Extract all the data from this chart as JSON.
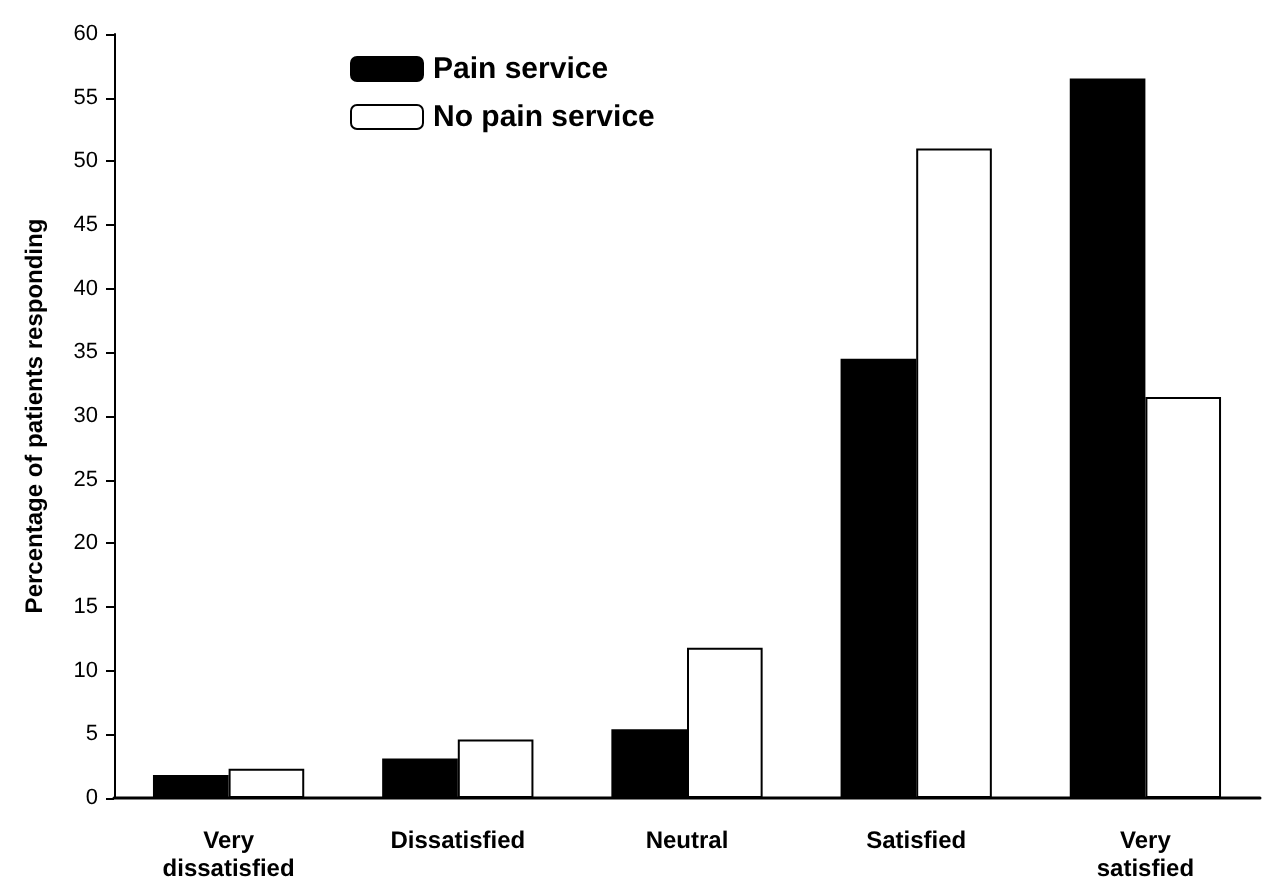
{
  "chart_data": {
    "type": "bar",
    "ylabel": "Percentage of patients responding",
    "categories": [
      "Very\ndissatisfied",
      "Dissatisfied",
      "Neutral",
      "Satisfied",
      "Very\nsatisfied"
    ],
    "series": [
      {
        "name": "Pain service",
        "color": "#000000",
        "values": [
          1.8,
          3.1,
          5.4,
          34.5,
          56.5
        ]
      },
      {
        "name": "No pain service",
        "color": "#ffffff",
        "values": [
          2.3,
          4.6,
          11.8,
          51.0,
          31.5
        ]
      }
    ],
    "ylim": [
      0,
      60
    ],
    "yticks": [
      0,
      5,
      10,
      15,
      20,
      25,
      30,
      35,
      40,
      45,
      50,
      55,
      60
    ],
    "grid": false,
    "legend": "top left"
  }
}
